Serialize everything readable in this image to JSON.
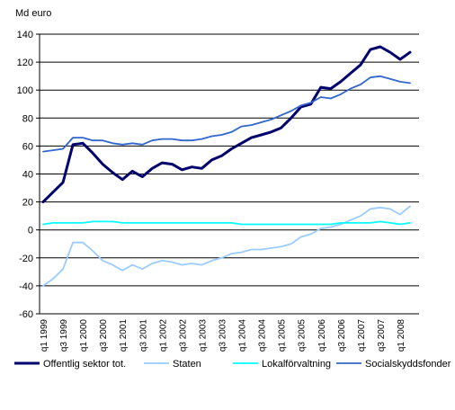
{
  "chart_data": {
    "type": "line",
    "title": "",
    "xlabel": "",
    "ylabel": "Md euro",
    "ylim": [
      -60,
      140
    ],
    "yticks": [
      -60,
      -40,
      -20,
      0,
      20,
      40,
      60,
      80,
      100,
      120,
      140
    ],
    "grid": "horizontal",
    "legend_position": "bottom",
    "categories": [
      "q1 1999",
      "q2 1999",
      "q3 1999",
      "q4 1999",
      "q1 2000",
      "q2 2000",
      "q3 2000",
      "q4 2000",
      "q1 2001",
      "q2 2001",
      "q3 2001",
      "q4 2001",
      "q1 2002",
      "q2 2002",
      "q3 2002",
      "q4 2002",
      "q1 2003",
      "q2 2003",
      "q3 2003",
      "q4 2003",
      "q1 2004",
      "q2 2004",
      "q3 2004",
      "q4 2004",
      "q1 2005",
      "q2 2005",
      "q3 2005",
      "q4 2005",
      "q1 2006",
      "q2 2006",
      "q3 2006",
      "q4 2006",
      "q1 2007",
      "q2 2007",
      "q3 2007",
      "q4 2007",
      "q1 2008",
      "q2 2008"
    ],
    "tick_labels": [
      "q1 1999",
      "q3 1999",
      "q1 2000",
      "q3 2000",
      "q1 2001",
      "q3 2001",
      "q1 2002",
      "q3 2002",
      "q1 2003",
      "q3 2003",
      "q1 2004",
      "q3 2004",
      "q1 2005",
      "q3 2005",
      "q1 2006",
      "q3 2006",
      "q1 2007",
      "q3 2007",
      "q1 2008"
    ],
    "series": [
      {
        "name": "Offentlig sektor tot.",
        "color": "#00006e",
        "width": 3,
        "values": [
          20,
          27,
          34,
          61,
          62,
          55,
          47,
          41,
          36,
          42,
          38,
          44,
          48,
          47,
          43,
          45,
          44,
          50,
          53,
          58,
          62,
          66,
          68,
          70,
          73,
          80,
          88,
          90,
          102,
          101,
          106,
          112,
          118,
          129,
          131,
          127,
          122,
          127
        ]
      },
      {
        "name": "Staten",
        "color": "#99ccff",
        "width": 1.8,
        "values": [
          -40,
          -35,
          -28,
          -9,
          -9,
          -15,
          -22,
          -25,
          -29,
          -25,
          -28,
          -24,
          -22,
          -23,
          -25,
          -24,
          -25,
          -22,
          -20,
          -17,
          -16,
          -14,
          -14,
          -13,
          -12,
          -10,
          -5,
          -3,
          1,
          2,
          4,
          7,
          10,
          15,
          16,
          15,
          11,
          17
        ]
      },
      {
        "name": "Lokalförvaltning",
        "color": "#00ffff",
        "width": 1.8,
        "values": [
          4,
          5,
          5,
          5,
          5,
          6,
          6,
          6,
          5,
          5,
          5,
          5,
          5,
          5,
          5,
          5,
          5,
          5,
          5,
          5,
          4,
          4,
          4,
          4,
          4,
          4,
          4,
          4,
          4,
          4,
          5,
          5,
          5,
          5,
          6,
          5,
          4,
          5
        ]
      },
      {
        "name": "Socialskyddsfonder",
        "color": "#3366cc",
        "width": 1.8,
        "values": [
          56,
          57,
          58,
          66,
          66,
          64,
          64,
          62,
          61,
          62,
          61,
          64,
          65,
          65,
          64,
          64,
          65,
          67,
          68,
          70,
          74,
          75,
          77,
          79,
          82,
          85,
          89,
          91,
          95,
          94,
          97,
          101,
          104,
          109,
          110,
          108,
          106,
          105
        ]
      }
    ]
  }
}
